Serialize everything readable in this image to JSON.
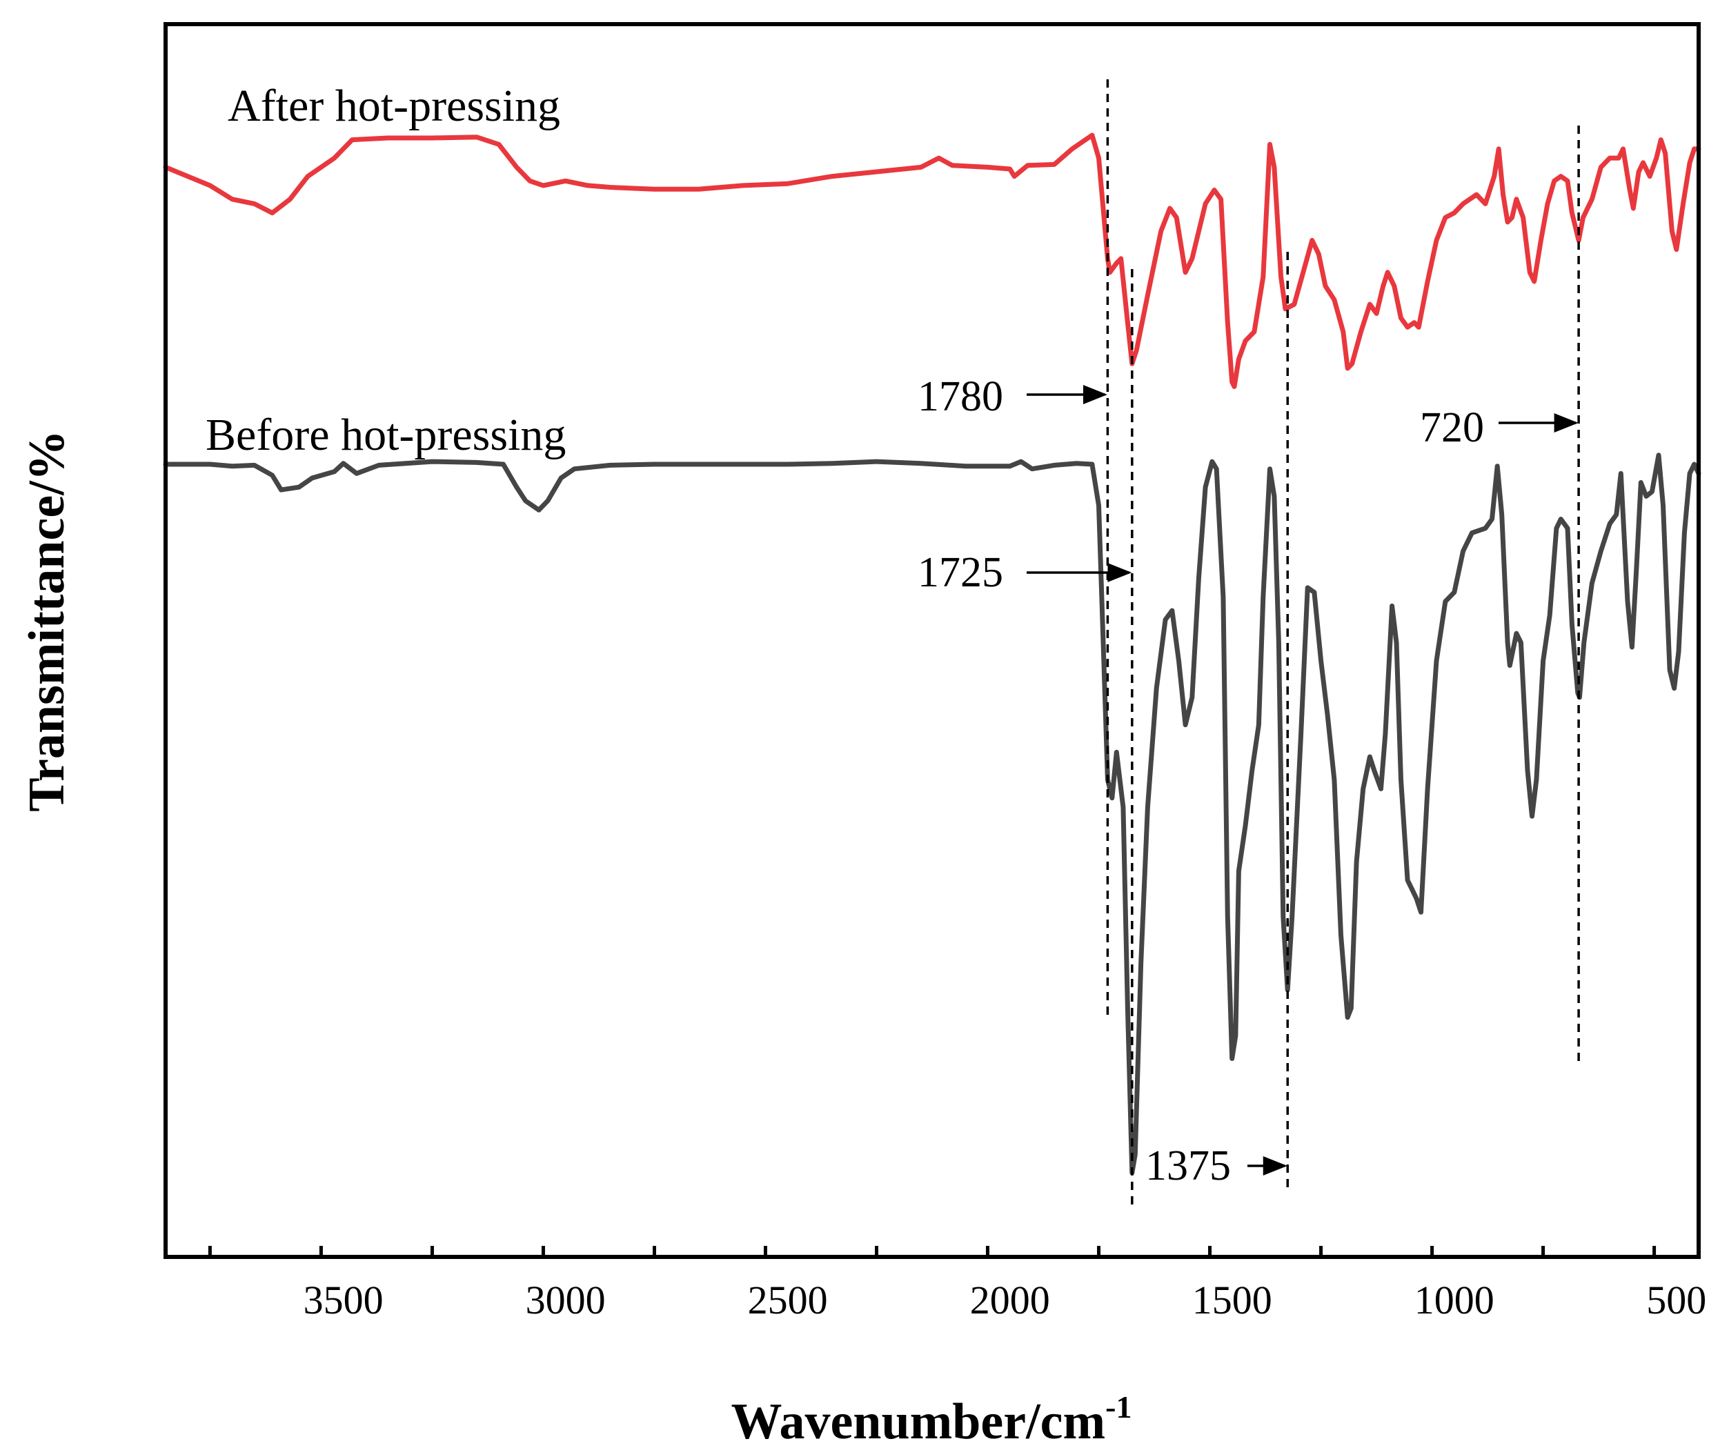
{
  "chart_data": {
    "type": "line",
    "title": "",
    "xlabel": "Wavenumber/cm",
    "xlabel_sup": "-1",
    "ylabel": "Transmittance/%",
    "xlim": [
      3900,
      450
    ],
    "x_reversed": true,
    "y_ticks_shown": false,
    "x_ticks": [
      3500,
      3000,
      2500,
      2000,
      1500,
      1000,
      500
    ],
    "x_tick_labels": [
      "3500",
      "3000",
      "2500",
      "2000",
      "1500",
      "1000",
      "500"
    ],
    "grid": false,
    "y_units": "transmittance (arbitrary, curves offset)",
    "series": [
      {
        "name": "After hot-pressing",
        "color": "#e8383d",
        "points": [
          [
            3900,
            92.0
          ],
          [
            3800,
            90.0
          ],
          [
            3750,
            88.5
          ],
          [
            3700,
            88.0
          ],
          [
            3660,
            87.0
          ],
          [
            3620,
            88.5
          ],
          [
            3580,
            91.0
          ],
          [
            3520,
            93.0
          ],
          [
            3480,
            95.0
          ],
          [
            3400,
            95.2
          ],
          [
            3300,
            95.2
          ],
          [
            3200,
            95.3
          ],
          [
            3150,
            94.5
          ],
          [
            3110,
            92.0
          ],
          [
            3080,
            90.5
          ],
          [
            3050,
            90.0
          ],
          [
            3000,
            90.5
          ],
          [
            2950,
            90.0
          ],
          [
            2900,
            89.8
          ],
          [
            2800,
            89.6
          ],
          [
            2700,
            89.6
          ],
          [
            2600,
            90.0
          ],
          [
            2500,
            90.2
          ],
          [
            2400,
            91.0
          ],
          [
            2300,
            91.5
          ],
          [
            2200,
            92.0
          ],
          [
            2160,
            93.0
          ],
          [
            2130,
            92.2
          ],
          [
            2050,
            92.0
          ],
          [
            2000,
            91.8
          ],
          [
            1990,
            91.0
          ],
          [
            1960,
            92.2
          ],
          [
            1900,
            92.3
          ],
          [
            1860,
            94.0
          ],
          [
            1815,
            95.5
          ],
          [
            1800,
            93.0
          ],
          [
            1780,
            82.0
          ],
          [
            1775,
            80.5
          ],
          [
            1760,
            81.5
          ],
          [
            1750,
            82.0
          ],
          [
            1735,
            75.0
          ],
          [
            1725,
            70.5
          ],
          [
            1715,
            72.0
          ],
          [
            1690,
            78.0
          ],
          [
            1660,
            85.0
          ],
          [
            1640,
            87.5
          ],
          [
            1625,
            86.5
          ],
          [
            1605,
            80.5
          ],
          [
            1590,
            82.0
          ],
          [
            1560,
            88.0
          ],
          [
            1540,
            89.5
          ],
          [
            1525,
            88.5
          ],
          [
            1510,
            75.0
          ],
          [
            1500,
            68.5
          ],
          [
            1495,
            68.0
          ],
          [
            1485,
            71.0
          ],
          [
            1470,
            73.0
          ],
          [
            1450,
            74.0
          ],
          [
            1430,
            80.0
          ],
          [
            1415,
            94.5
          ],
          [
            1405,
            92.0
          ],
          [
            1390,
            80.0
          ],
          [
            1380,
            76.5
          ],
          [
            1360,
            77.0
          ],
          [
            1340,
            80.5
          ],
          [
            1320,
            84.0
          ],
          [
            1305,
            82.5
          ],
          [
            1290,
            79.0
          ],
          [
            1270,
            77.5
          ],
          [
            1250,
            74.0
          ],
          [
            1240,
            70.0
          ],
          [
            1230,
            70.5
          ],
          [
            1210,
            74.0
          ],
          [
            1190,
            77.0
          ],
          [
            1175,
            76.0
          ],
          [
            1160,
            79.0
          ],
          [
            1150,
            80.5
          ],
          [
            1135,
            79.0
          ],
          [
            1120,
            75.5
          ],
          [
            1105,
            74.5
          ],
          [
            1090,
            75.0
          ],
          [
            1080,
            74.5
          ],
          [
            1060,
            79.5
          ],
          [
            1040,
            84.0
          ],
          [
            1020,
            86.5
          ],
          [
            1000,
            87.0
          ],
          [
            980,
            88.0
          ],
          [
            950,
            89.0
          ],
          [
            930,
            88.0
          ],
          [
            910,
            91.0
          ],
          [
            900,
            94.0
          ],
          [
            890,
            89.0
          ],
          [
            880,
            86.0
          ],
          [
            870,
            86.5
          ],
          [
            860,
            88.5
          ],
          [
            845,
            86.5
          ],
          [
            830,
            80.5
          ],
          [
            820,
            79.5
          ],
          [
            805,
            84.0
          ],
          [
            790,
            88.0
          ],
          [
            775,
            90.5
          ],
          [
            760,
            91.0
          ],
          [
            745,
            90.5
          ],
          [
            735,
            87.0
          ],
          [
            725,
            85.0
          ],
          [
            720,
            84.0
          ],
          [
            710,
            86.5
          ],
          [
            690,
            88.5
          ],
          [
            670,
            92.0
          ],
          [
            650,
            93.0
          ],
          [
            630,
            93.0
          ],
          [
            620,
            94.0
          ],
          [
            605,
            89.5
          ],
          [
            597,
            87.5
          ],
          [
            585,
            91.5
          ],
          [
            575,
            92.5
          ],
          [
            560,
            91.0
          ],
          [
            545,
            93.0
          ],
          [
            535,
            95.0
          ],
          [
            525,
            93.5
          ],
          [
            510,
            85.0
          ],
          [
            500,
            83.0
          ],
          [
            485,
            88.0
          ],
          [
            470,
            92.5
          ],
          [
            460,
            94.0
          ],
          [
            450,
            94.0
          ]
        ]
      },
      {
        "name": "Before hot-pressing",
        "color": "#454545",
        "points": [
          [
            3900,
            59.5
          ],
          [
            3800,
            59.5
          ],
          [
            3750,
            59.3
          ],
          [
            3700,
            59.4
          ],
          [
            3660,
            58.3
          ],
          [
            3640,
            56.7
          ],
          [
            3600,
            57.0
          ],
          [
            3570,
            58.0
          ],
          [
            3520,
            58.7
          ],
          [
            3500,
            59.6
          ],
          [
            3470,
            58.5
          ],
          [
            3420,
            59.4
          ],
          [
            3300,
            59.8
          ],
          [
            3200,
            59.7
          ],
          [
            3140,
            59.5
          ],
          [
            3110,
            57.0
          ],
          [
            3090,
            55.5
          ],
          [
            3060,
            54.5
          ],
          [
            3040,
            55.5
          ],
          [
            3010,
            58.0
          ],
          [
            2980,
            59.0
          ],
          [
            2900,
            59.4
          ],
          [
            2800,
            59.5
          ],
          [
            2700,
            59.5
          ],
          [
            2600,
            59.5
          ],
          [
            2500,
            59.5
          ],
          [
            2400,
            59.6
          ],
          [
            2300,
            59.8
          ],
          [
            2200,
            59.6
          ],
          [
            2100,
            59.3
          ],
          [
            2000,
            59.3
          ],
          [
            1975,
            59.8
          ],
          [
            1950,
            59.0
          ],
          [
            1900,
            59.4
          ],
          [
            1850,
            59.6
          ],
          [
            1815,
            59.5
          ],
          [
            1800,
            55.0
          ],
          [
            1790,
            40.0
          ],
          [
            1780,
            25.0
          ],
          [
            1770,
            23.0
          ],
          [
            1760,
            28.0
          ],
          [
            1745,
            22.0
          ],
          [
            1735,
            0.0
          ],
          [
            1725,
            -18.0
          ],
          [
            1718,
            -16.0
          ],
          [
            1705,
            5.0
          ],
          [
            1690,
            22.0
          ],
          [
            1670,
            35.0
          ],
          [
            1650,
            42.5
          ],
          [
            1635,
            43.5
          ],
          [
            1620,
            38.0
          ],
          [
            1605,
            31.0
          ],
          [
            1590,
            34.0
          ],
          [
            1575,
            47.0
          ],
          [
            1560,
            57.0
          ],
          [
            1545,
            59.8
          ],
          [
            1535,
            59.0
          ],
          [
            1520,
            45.0
          ],
          [
            1510,
            10.0
          ],
          [
            1500,
            -5.5
          ],
          [
            1492,
            -3.0
          ],
          [
            1485,
            15.0
          ],
          [
            1470,
            20.0
          ],
          [
            1455,
            26.0
          ],
          [
            1440,
            31.0
          ],
          [
            1430,
            45.0
          ],
          [
            1415,
            59.0
          ],
          [
            1405,
            56.0
          ],
          [
            1395,
            40.0
          ],
          [
            1385,
            10.0
          ],
          [
            1375,
            2.0
          ],
          [
            1365,
            10.0
          ],
          [
            1345,
            30.0
          ],
          [
            1330,
            46.0
          ],
          [
            1315,
            45.5
          ],
          [
            1300,
            38.0
          ],
          [
            1285,
            32.0
          ],
          [
            1270,
            25.0
          ],
          [
            1255,
            8.0
          ],
          [
            1240,
            -1.0
          ],
          [
            1232,
            0.0
          ],
          [
            1220,
            16.0
          ],
          [
            1205,
            24.0
          ],
          [
            1190,
            27.5
          ],
          [
            1180,
            26.0
          ],
          [
            1165,
            24.0
          ],
          [
            1155,
            30.0
          ],
          [
            1140,
            44.0
          ],
          [
            1130,
            40.0
          ],
          [
            1120,
            25.0
          ],
          [
            1105,
            14.0
          ],
          [
            1095,
            13.0
          ],
          [
            1085,
            12.0
          ],
          [
            1075,
            10.5
          ],
          [
            1060,
            24.0
          ],
          [
            1040,
            38.0
          ],
          [
            1020,
            44.5
          ],
          [
            1000,
            45.5
          ],
          [
            980,
            50.0
          ],
          [
            960,
            52.0
          ],
          [
            930,
            52.5
          ],
          [
            915,
            53.5
          ],
          [
            903,
            59.3
          ],
          [
            893,
            54.0
          ],
          [
            880,
            40.0
          ],
          [
            875,
            37.5
          ],
          [
            860,
            41.0
          ],
          [
            850,
            40.0
          ],
          [
            835,
            26.0
          ],
          [
            825,
            21.0
          ],
          [
            815,
            25.0
          ],
          [
            800,
            38.0
          ],
          [
            785,
            43.0
          ],
          [
            770,
            52.5
          ],
          [
            760,
            53.5
          ],
          [
            745,
            52.5
          ],
          [
            735,
            42.0
          ],
          [
            722,
            34.5
          ],
          [
            718,
            34.0
          ],
          [
            708,
            40.0
          ],
          [
            690,
            46.5
          ],
          [
            670,
            50.0
          ],
          [
            650,
            53.0
          ],
          [
            635,
            54.0
          ],
          [
            625,
            58.5
          ],
          [
            610,
            44.5
          ],
          [
            600,
            39.5
          ],
          [
            590,
            48.0
          ],
          [
            580,
            57.5
          ],
          [
            568,
            56.0
          ],
          [
            555,
            56.5
          ],
          [
            540,
            60.5
          ],
          [
            530,
            55.0
          ],
          [
            515,
            37.0
          ],
          [
            505,
            35.0
          ],
          [
            495,
            39.0
          ],
          [
            482,
            52.0
          ],
          [
            470,
            58.5
          ],
          [
            460,
            59.5
          ],
          [
            450,
            58.5
          ]
        ]
      }
    ],
    "annotations": [
      {
        "label": "1780",
        "x": 1780
      },
      {
        "label": "1725",
        "x": 1725
      },
      {
        "label": "1375",
        "x": 1375
      },
      {
        "label": "720",
        "x": 720
      }
    ]
  }
}
